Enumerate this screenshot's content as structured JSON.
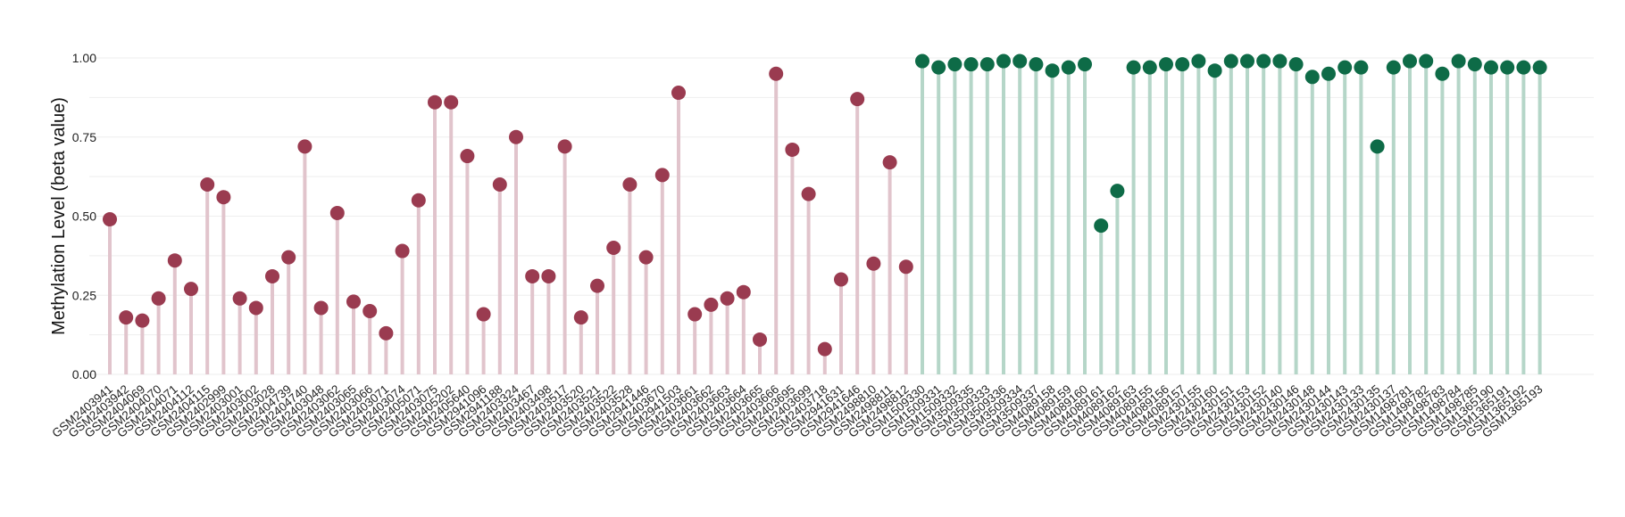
{
  "chart_data": {
    "type": "lollipop",
    "ylabel": "Methylation Level (beta value)",
    "ylim": [
      0,
      1.0
    ],
    "yticks": [
      0.0,
      0.25,
      0.5,
      0.75,
      1.0
    ],
    "ytick_labels": [
      "0.00",
      "0.25",
      "0.50",
      "0.75",
      "1.00"
    ],
    "grid": true,
    "colors": {
      "group_a_point": "#9a3b50",
      "group_a_stem": "#e1c4cc",
      "group_b_point": "#0e6b47",
      "group_b_stem": "#b5d6c8",
      "grid": "#eeeeee"
    },
    "series": [
      {
        "group": "a",
        "categories": [
          "GSM2403941",
          "GSM2403942",
          "GSM2404069",
          "GSM2404070",
          "GSM2404071",
          "GSM2404112",
          "GSM2404115",
          "GSM2402999",
          "GSM2403001",
          "GSM2403002",
          "GSM2403028",
          "GSM2404739",
          "GSM2404740",
          "GSM2403048",
          "GSM2403062",
          "GSM2403065",
          "GSM2403066",
          "GSM2403071",
          "GSM2403074",
          "GSM2405071",
          "GSM2403075",
          "GSM2405202",
          "GSM2405640",
          "GSM2941096",
          "GSM2941188",
          "GSM2403324",
          "GSM2403467",
          "GSM2403498",
          "GSM2403517",
          "GSM2403520",
          "GSM2403521",
          "GSM2403522",
          "GSM2403528",
          "GSM2941446",
          "GSM2403670",
          "GSM2941503",
          "GSM2403661",
          "GSM2403662",
          "GSM2403663",
          "GSM2403664",
          "GSM2403665",
          "GSM2403666",
          "GSM2403695",
          "GSM2403699",
          "GSM2403718",
          "GSM2941631",
          "GSM2941646",
          "GSM2498810",
          "GSM2498811",
          "GSM2498812"
        ],
        "values": [
          0.49,
          0.18,
          0.17,
          0.24,
          0.36,
          0.27,
          0.6,
          0.56,
          0.24,
          0.21,
          0.31,
          0.37,
          0.72,
          0.21,
          0.51,
          0.23,
          0.2,
          0.13,
          0.39,
          0.55,
          0.86,
          0.86,
          0.69,
          0.19,
          0.6,
          0.75,
          0.31,
          0.31,
          0.72,
          0.18,
          0.28,
          0.4,
          0.6,
          0.37,
          0.63,
          0.89,
          0.19,
          0.22,
          0.24,
          0.26,
          0.11,
          0.95,
          0.71,
          0.57,
          0.08,
          0.3,
          0.87,
          0.35,
          0.67,
          0.34
        ]
      },
      {
        "group": "b",
        "categories": [
          "GSM1509330",
          "GSM1509331",
          "GSM1509332",
          "GSM3509335",
          "GSM3509333",
          "GSM3509336",
          "GSM3509334",
          "GSM3509337",
          "GSM4089158",
          "GSM4089159",
          "GSM4089160",
          "GSM4089161",
          "GSM4089162",
          "GSM4089163",
          "GSM4089155",
          "GSM4089156",
          "GSM4089157",
          "GSM2430155",
          "GSM2430160",
          "GSM2430151",
          "GSM2430153",
          "GSM2430152",
          "GSM2430140",
          "GSM2430146",
          "GSM2430148",
          "GSM2430144",
          "GSM2430143",
          "GSM2430133",
          "GSM2430135",
          "GSM2430137",
          "GSM1498781",
          "GSM1498782",
          "GSM1498783",
          "GSM1498784",
          "GSM1498785",
          "GSM1365190",
          "GSM1365191",
          "GSM1365192",
          "GSM1365193"
        ],
        "values": [
          0.99,
          0.97,
          0.98,
          0.98,
          0.98,
          0.99,
          0.99,
          0.98,
          0.96,
          0.97,
          0.98,
          0.47,
          0.58,
          0.97,
          0.97,
          0.98,
          0.98,
          0.99,
          0.96,
          0.99,
          0.99,
          0.99,
          0.99,
          0.98,
          0.94,
          0.95,
          0.97,
          0.97,
          0.72,
          0.97,
          0.99,
          0.99,
          0.95,
          0.99,
          0.98,
          0.97,
          0.97,
          0.97,
          0.97
        ]
      }
    ]
  }
}
